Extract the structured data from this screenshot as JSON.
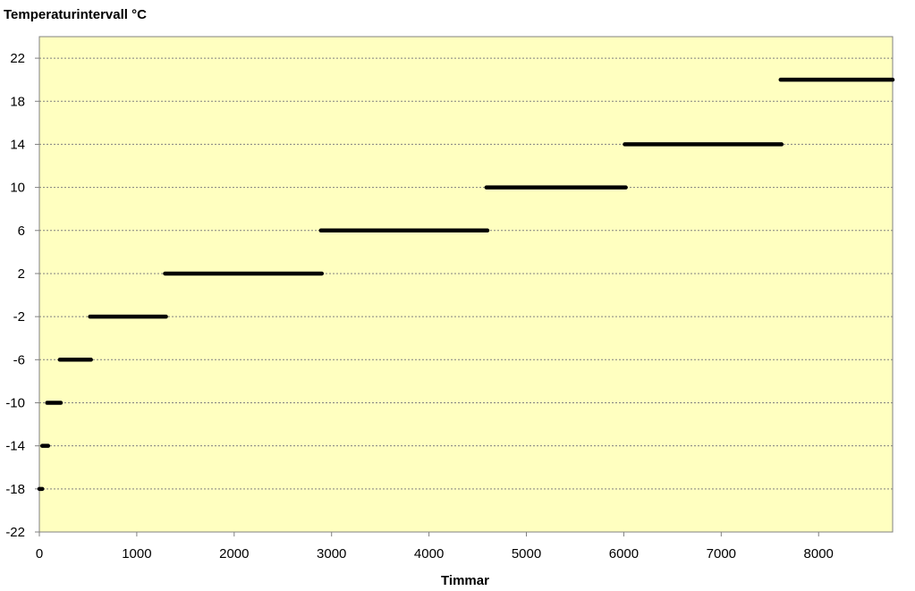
{
  "chart_data": {
    "type": "line",
    "ylabel": "Temperaturintervall °C",
    "xlabel": "Timmar",
    "xlim": [
      0,
      8760
    ],
    "ylim": [
      -22,
      24
    ],
    "xticks": [
      0,
      1000,
      2000,
      3000,
      4000,
      5000,
      6000,
      7000,
      8000
    ],
    "yticks": [
      22,
      18,
      14,
      10,
      6,
      2,
      -2,
      -6,
      -10,
      -14,
      -18,
      -22
    ],
    "grid": "horizontal-dashed",
    "plot_background": "#ffffc0",
    "segments": [
      {
        "y": -18,
        "x_start": 0,
        "x_end": 30
      },
      {
        "y": -14,
        "x_start": 30,
        "x_end": 90
      },
      {
        "y": -10,
        "x_start": 80,
        "x_end": 220
      },
      {
        "y": -6,
        "x_start": 210,
        "x_end": 530
      },
      {
        "y": -2,
        "x_start": 520,
        "x_end": 1300
      },
      {
        "y": 2,
        "x_start": 1290,
        "x_end": 2900
      },
      {
        "y": 6,
        "x_start": 2890,
        "x_end": 4600
      },
      {
        "y": 10,
        "x_start": 4590,
        "x_end": 6020
      },
      {
        "y": 14,
        "x_start": 6010,
        "x_end": 7620
      },
      {
        "y": 20,
        "x_start": 7610,
        "x_end": 8760
      }
    ]
  }
}
